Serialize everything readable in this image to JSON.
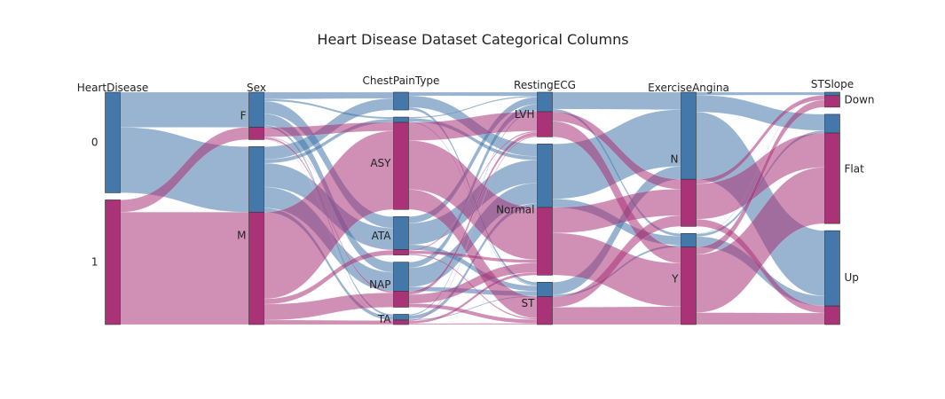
{
  "chart_data": {
    "type": "parallel-categories",
    "title": "Heart Disease Dataset Categorical Columns",
    "color_by": "HeartDisease",
    "colors": {
      "0": "#4477aa",
      "1": "#aa3377"
    },
    "dimensions": [
      {
        "name": "HeartDisease",
        "categories": [
          {
            "label": "0",
            "counts": [
              410,
              0
            ]
          },
          {
            "label": "1",
            "counts": [
              0,
              508
            ]
          }
        ]
      },
      {
        "name": "Sex",
        "categories": [
          {
            "label": "F",
            "counts": [
              143,
              50
            ]
          },
          {
            "label": "M",
            "counts": [
              267,
              458
            ]
          }
        ]
      },
      {
        "name": "ChestPainType",
        "categories": [
          {
            "label": "",
            "counts": [
              80,
              0
            ]
          },
          {
            "label": "ASY",
            "counts": [
              24,
              392
            ]
          },
          {
            "label": "ATA",
            "counts": [
              149,
              24
            ]
          },
          {
            "label": "NAP",
            "counts": [
              131,
              72
            ]
          },
          {
            "label": "TA",
            "counts": [
              26,
              20
            ]
          }
        ]
      },
      {
        "name": "RestingECG",
        "categories": [
          {
            "label": "LVH",
            "counts": [
              82,
              106
            ]
          },
          {
            "label": "Normal",
            "counts": [
              267,
              285
            ]
          },
          {
            "label": "ST",
            "counts": [
              61,
              117
            ]
          }
        ]
      },
      {
        "name": "ExerciseAngina",
        "categories": [
          {
            "label": "N",
            "counts": [
              355,
              192
            ]
          },
          {
            "label": "Y",
            "counts": [
              55,
              316
            ]
          }
        ]
      },
      {
        "name": "STSlope",
        "categories": [
          {
            "label": "Down",
            "counts": [
              14,
              49
            ]
          },
          {
            "label": "Flat",
            "counts": [
              79,
              381
            ]
          },
          {
            "label": "Up",
            "counts": [
              317,
              78
            ]
          }
        ]
      }
    ]
  }
}
